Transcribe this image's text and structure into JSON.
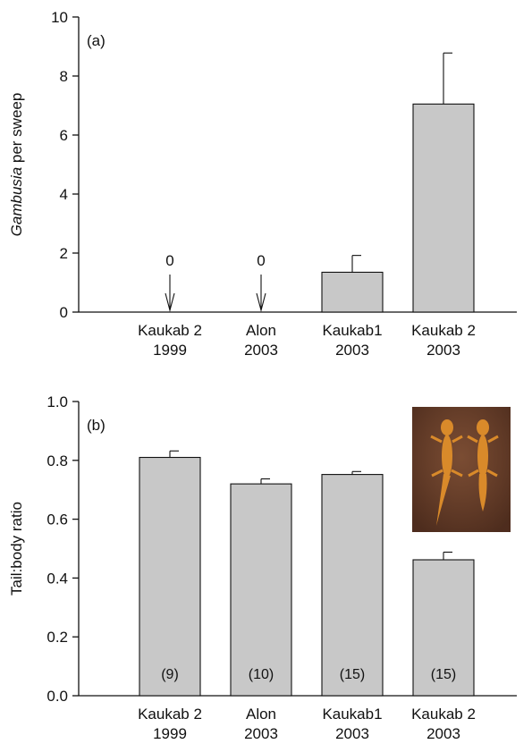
{
  "colors": {
    "bar_fill": "#c8c8c8",
    "bar_stroke": "#111111",
    "photo_bg": "#6b3f2a",
    "newt": "#d98a2a"
  },
  "chart_data": [
    {
      "type": "bar",
      "panel_label": "(a)",
      "ylabel_italic": "Gambusia",
      "ylabel_rest": " per sweep",
      "ylim": [
        0,
        10
      ],
      "yticks": [
        0,
        2,
        4,
        6,
        8,
        10
      ],
      "ytick_labels": [
        "0",
        "2",
        "4",
        "6",
        "8",
        "10"
      ],
      "categories": [
        {
          "line1": "Kaukab 2",
          "line2": "1999"
        },
        {
          "line1": "Alon",
          "line2": "2003"
        },
        {
          "line1": "Kaukab1",
          "line2": "2003"
        },
        {
          "line1": "Kaukab 2",
          "line2": "2003"
        }
      ],
      "values": [
        0,
        0,
        1.35,
        7.05
      ],
      "errors": [
        null,
        null,
        0.57,
        1.73
      ],
      "zero_markers": [
        "0",
        "0",
        null,
        null
      ],
      "grid": false
    },
    {
      "type": "bar",
      "panel_label": "(b)",
      "ylabel": "Tail:body ratio",
      "ylim": [
        0,
        1.0
      ],
      "yticks": [
        0,
        0.2,
        0.4,
        0.6,
        0.8,
        1.0
      ],
      "ytick_labels": [
        "0.0",
        "0.2",
        "0.4",
        "0.6",
        "0.8",
        "1.0"
      ],
      "categories": [
        {
          "line1": "Kaukab 2",
          "line2": "1999"
        },
        {
          "line1": "Alon",
          "line2": "2003"
        },
        {
          "line1": "Kaukab1",
          "line2": "2003"
        },
        {
          "line1": "Kaukab 2",
          "line2": "2003"
        }
      ],
      "values": [
        0.81,
        0.72,
        0.752,
        0.462
      ],
      "errors": [
        0.022,
        0.017,
        0.01,
        0.026
      ],
      "sample_sizes": [
        "(9)",
        "(10)",
        "(15)",
        "(15)"
      ],
      "grid": false
    }
  ]
}
